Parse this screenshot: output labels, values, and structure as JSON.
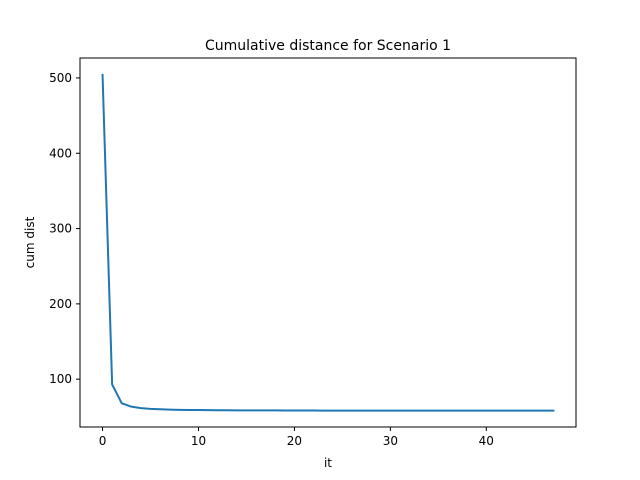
{
  "chart_data": {
    "type": "line",
    "title": "Cumulative distance for Scenario 1",
    "xlabel": "it",
    "ylabel": "cum dist",
    "xlim": [
      -2.35,
      49.35
    ],
    "ylim": [
      36.5,
      526.5
    ],
    "x_ticks": [
      0,
      10,
      20,
      30,
      40
    ],
    "y_ticks": [
      100,
      200,
      300,
      400,
      500
    ],
    "grid": false,
    "series": [
      {
        "color": "#1f77b4",
        "x": [
          0,
          1,
          2,
          3,
          4,
          5,
          6,
          7,
          8,
          9,
          10,
          11,
          12,
          13,
          14,
          15,
          16,
          17,
          18,
          19,
          20,
          21,
          22,
          23,
          24,
          25,
          26,
          27,
          28,
          29,
          30,
          31,
          32,
          33,
          34,
          35,
          36,
          37,
          38,
          39,
          40,
          41,
          42,
          43,
          44,
          45,
          46,
          47
        ],
        "y": [
          504,
          93,
          68,
          63.5,
          61.5,
          60.5,
          60,
          59.6,
          59.3,
          59.1,
          59,
          58.9,
          58.8,
          58.7,
          58.6,
          58.6,
          58.5,
          58.5,
          58.5,
          58.4,
          58.4,
          58.4,
          58.4,
          58.3,
          58.3,
          58.3,
          58.3,
          58.3,
          58.3,
          58.3,
          58.3,
          58.3,
          58.3,
          58.3,
          58.3,
          58.3,
          58.3,
          58.3,
          58.3,
          58.3,
          58.3,
          58.3,
          58.3,
          58.3,
          58.3,
          58.3,
          58.3,
          58.3
        ]
      }
    ]
  }
}
